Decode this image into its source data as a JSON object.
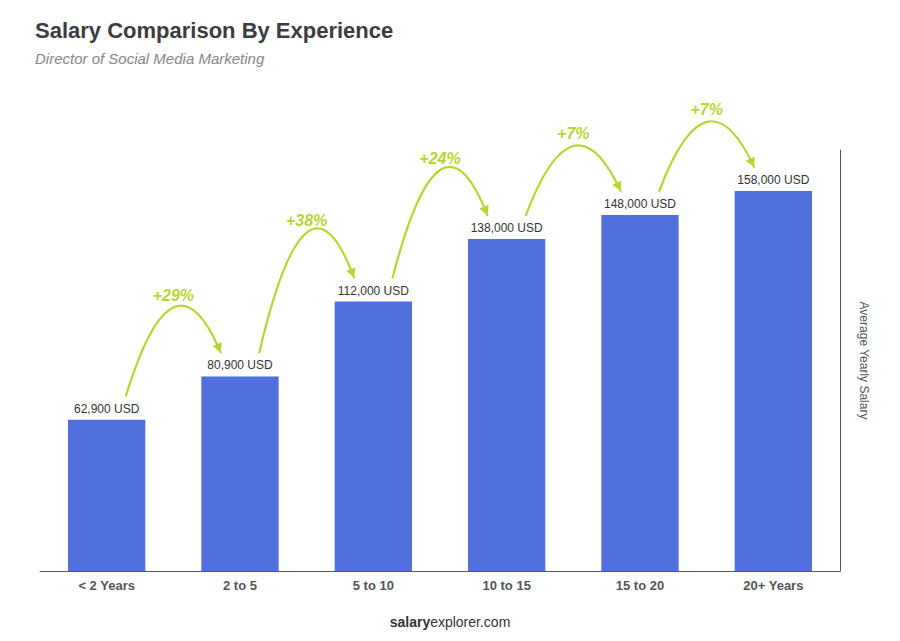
{
  "chart_data": {
    "type": "bar",
    "title": "Salary Comparison By Experience",
    "subtitle": "Director of Social Media Marketing",
    "categories": [
      "< 2 Years",
      "2 to 5",
      "5 to 10",
      "10 to 15",
      "15 to 20",
      "20+ Years"
    ],
    "values": [
      62900,
      80900,
      112000,
      138000,
      148000,
      158000
    ],
    "value_labels": [
      "62,900 USD",
      "80,900 USD",
      "112,000 USD",
      "138,000 USD",
      "148,000 USD",
      "158,000 USD"
    ],
    "data_labels": true,
    "ylabel": "Average Yearly Salary",
    "ylim": [
      0,
      175000
    ],
    "tick_labels": "x",
    "grid": false,
    "annotations": [
      {
        "from": "< 2 Years",
        "to": "2 to 5",
        "text": "+29%"
      },
      {
        "from": "2 to 5",
        "to": "5 to 10",
        "text": "+38%"
      },
      {
        "from": "5 to 10",
        "to": "10 to 15",
        "text": "+24%"
      },
      {
        "from": "10 to 15",
        "to": "15 to 20",
        "text": "+7%"
      },
      {
        "from": "15 to 20",
        "to": "20+ Years",
        "text": "+7%"
      }
    ],
    "footer": {
      "bold": "salary",
      "normal": "explorer.com"
    }
  }
}
